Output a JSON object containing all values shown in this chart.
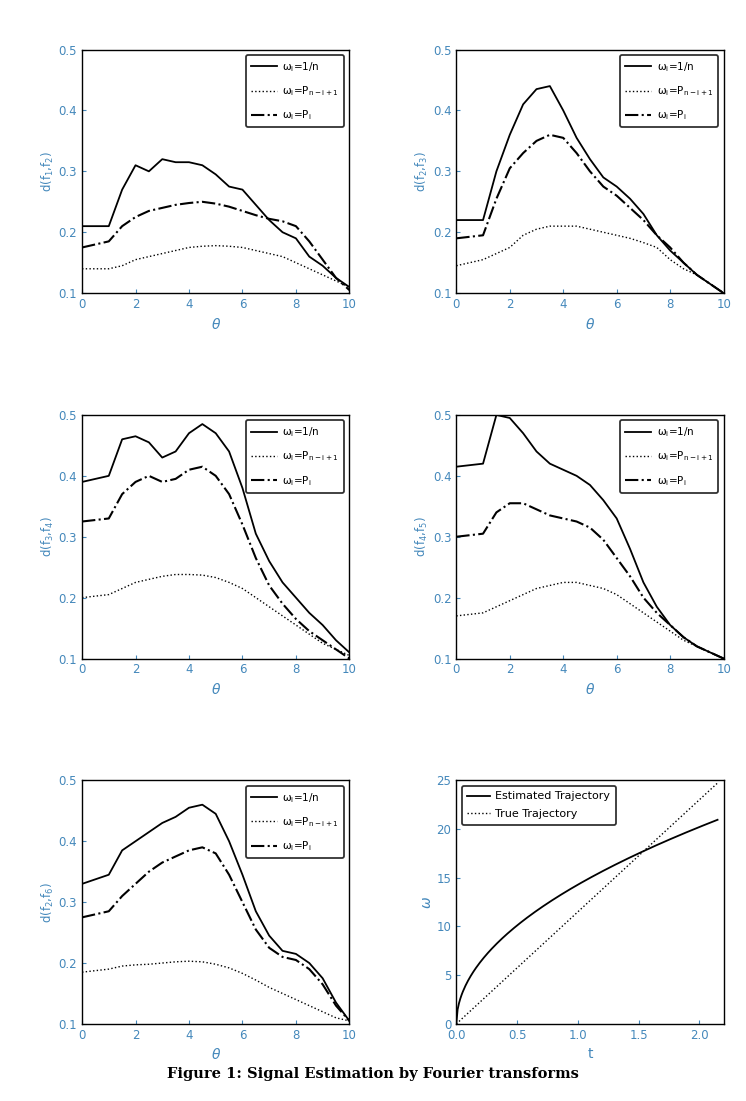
{
  "title": "Figure 1: Signal Estimation by Fourier transforms",
  "ylim": [
    0.1,
    0.5
  ],
  "xlim": [
    0,
    10
  ],
  "tick_color": "#4488bb",
  "plots": [
    {
      "solid": [
        0,
        0.21,
        1,
        0.21,
        1.5,
        0.27,
        2,
        0.31,
        2.5,
        0.3,
        3,
        0.32,
        3.5,
        0.315,
        4,
        0.315,
        4.5,
        0.31,
        5,
        0.295,
        5.5,
        0.275,
        6,
        0.27,
        6.5,
        0.245,
        7,
        0.22,
        7.5,
        0.2,
        8,
        0.19,
        8.5,
        0.16,
        9,
        0.145,
        9.5,
        0.125,
        10,
        0.11
      ],
      "dotted": [
        0,
        0.14,
        1,
        0.14,
        1.5,
        0.145,
        2,
        0.155,
        2.5,
        0.16,
        3,
        0.165,
        3.5,
        0.17,
        4,
        0.175,
        4.5,
        0.177,
        5,
        0.178,
        5.5,
        0.177,
        6,
        0.175,
        6.5,
        0.17,
        7,
        0.165,
        7.5,
        0.16,
        8,
        0.15,
        8.5,
        0.14,
        9,
        0.13,
        9.5,
        0.12,
        10,
        0.11
      ],
      "dashdot": [
        0,
        0.175,
        1,
        0.185,
        1.5,
        0.21,
        2,
        0.225,
        2.5,
        0.235,
        3,
        0.24,
        3.5,
        0.245,
        4,
        0.248,
        4.5,
        0.25,
        5,
        0.247,
        5.5,
        0.242,
        6,
        0.235,
        6.5,
        0.228,
        7,
        0.222,
        7.5,
        0.218,
        8,
        0.21,
        8.5,
        0.185,
        9,
        0.155,
        9.5,
        0.125,
        10,
        0.105
      ],
      "ylabel": "d(f$_1$,f$_2$)"
    },
    {
      "solid": [
        0,
        0.22,
        1,
        0.22,
        1.5,
        0.3,
        2,
        0.36,
        2.5,
        0.41,
        3,
        0.435,
        3.5,
        0.44,
        4,
        0.4,
        4.5,
        0.355,
        5,
        0.32,
        5.5,
        0.29,
        6,
        0.275,
        6.5,
        0.255,
        7,
        0.23,
        7.5,
        0.195,
        8,
        0.17,
        8.5,
        0.15,
        9,
        0.13,
        9.5,
        0.115,
        10,
        0.1
      ],
      "dotted": [
        0,
        0.145,
        1,
        0.155,
        1.5,
        0.165,
        2,
        0.175,
        2.5,
        0.195,
        3,
        0.205,
        3.5,
        0.21,
        4,
        0.21,
        4.5,
        0.21,
        5,
        0.205,
        5.5,
        0.2,
        6,
        0.195,
        6.5,
        0.19,
        7,
        0.183,
        7.5,
        0.175,
        8,
        0.155,
        8.5,
        0.14,
        9,
        0.13,
        9.5,
        0.115,
        10,
        0.1
      ],
      "dashdot": [
        0,
        0.19,
        1,
        0.195,
        1.5,
        0.255,
        2,
        0.305,
        2.5,
        0.33,
        3,
        0.35,
        3.5,
        0.36,
        4,
        0.355,
        4.5,
        0.33,
        5,
        0.3,
        5.5,
        0.275,
        6,
        0.26,
        6.5,
        0.24,
        7,
        0.22,
        7.5,
        0.195,
        8,
        0.175,
        8.5,
        0.15,
        9,
        0.13,
        9.5,
        0.115,
        10,
        0.1
      ],
      "ylabel": "d(f$_2$,f$_3$)"
    },
    {
      "solid": [
        0,
        0.39,
        1,
        0.4,
        1.5,
        0.46,
        2,
        0.465,
        2.5,
        0.455,
        3,
        0.43,
        3.5,
        0.44,
        4,
        0.47,
        4.5,
        0.485,
        5,
        0.47,
        5.5,
        0.44,
        6,
        0.38,
        6.5,
        0.305,
        7,
        0.26,
        7.5,
        0.225,
        8,
        0.2,
        8.5,
        0.175,
        9,
        0.155,
        9.5,
        0.13,
        10,
        0.11
      ],
      "dotted": [
        0,
        0.2,
        1,
        0.205,
        1.5,
        0.215,
        2,
        0.225,
        2.5,
        0.23,
        3,
        0.235,
        3.5,
        0.238,
        4,
        0.238,
        4.5,
        0.237,
        5,
        0.233,
        5.5,
        0.225,
        6,
        0.215,
        6.5,
        0.2,
        7,
        0.185,
        7.5,
        0.17,
        8,
        0.155,
        8.5,
        0.14,
        9,
        0.125,
        9.5,
        0.115,
        10,
        0.105
      ],
      "dashdot": [
        0,
        0.325,
        1,
        0.33,
        1.5,
        0.37,
        2,
        0.39,
        2.5,
        0.4,
        3,
        0.39,
        3.5,
        0.395,
        4,
        0.41,
        4.5,
        0.415,
        5,
        0.4,
        5.5,
        0.37,
        6,
        0.32,
        6.5,
        0.265,
        7,
        0.22,
        7.5,
        0.19,
        8,
        0.165,
        8.5,
        0.145,
        9,
        0.13,
        9.5,
        0.115,
        10,
        0.1
      ],
      "ylabel": "d(f$_3$,f$_4$)"
    },
    {
      "solid": [
        0,
        0.415,
        1,
        0.42,
        1.5,
        0.5,
        2,
        0.495,
        2.5,
        0.47,
        3,
        0.44,
        3.5,
        0.42,
        4,
        0.41,
        4.5,
        0.4,
        5,
        0.385,
        5.5,
        0.36,
        6,
        0.33,
        6.5,
        0.28,
        7,
        0.225,
        7.5,
        0.185,
        8,
        0.155,
        8.5,
        0.135,
        9,
        0.12,
        9.5,
        0.11,
        10,
        0.1
      ],
      "dotted": [
        0,
        0.17,
        1,
        0.175,
        1.5,
        0.185,
        2,
        0.195,
        2.5,
        0.205,
        3,
        0.215,
        3.5,
        0.22,
        4,
        0.225,
        4.5,
        0.225,
        5,
        0.22,
        5.5,
        0.215,
        6,
        0.205,
        6.5,
        0.19,
        7,
        0.175,
        7.5,
        0.16,
        8,
        0.145,
        8.5,
        0.13,
        9,
        0.12,
        9.5,
        0.11,
        10,
        0.1
      ],
      "dashdot": [
        0,
        0.3,
        1,
        0.305,
        1.5,
        0.34,
        2,
        0.355,
        2.5,
        0.355,
        3,
        0.345,
        3.5,
        0.335,
        4,
        0.33,
        4.5,
        0.325,
        5,
        0.315,
        5.5,
        0.295,
        6,
        0.265,
        6.5,
        0.235,
        7,
        0.2,
        7.5,
        0.175,
        8,
        0.155,
        8.5,
        0.135,
        9,
        0.12,
        9.5,
        0.11,
        10,
        0.1
      ],
      "ylabel": "d(f$_4$,f$_5$)"
    },
    {
      "solid": [
        0,
        0.33,
        1,
        0.345,
        1.5,
        0.385,
        2,
        0.4,
        2.5,
        0.415,
        3,
        0.43,
        3.5,
        0.44,
        4,
        0.455,
        4.5,
        0.46,
        5,
        0.445,
        5.5,
        0.4,
        6,
        0.345,
        6.5,
        0.285,
        7,
        0.245,
        7.5,
        0.22,
        8,
        0.215,
        8.5,
        0.2,
        9,
        0.175,
        9.5,
        0.135,
        10,
        0.105
      ],
      "dotted": [
        0,
        0.185,
        1,
        0.19,
        1.5,
        0.195,
        2,
        0.197,
        2.5,
        0.198,
        3,
        0.2,
        3.5,
        0.202,
        4,
        0.203,
        4.5,
        0.202,
        5,
        0.198,
        5.5,
        0.192,
        6,
        0.183,
        6.5,
        0.172,
        7,
        0.16,
        7.5,
        0.15,
        8,
        0.14,
        8.5,
        0.13,
        9,
        0.12,
        9.5,
        0.11,
        10,
        0.105
      ],
      "dashdot": [
        0,
        0.275,
        1,
        0.285,
        1.5,
        0.31,
        2,
        0.33,
        2.5,
        0.35,
        3,
        0.365,
        3.5,
        0.375,
        4,
        0.385,
        4.5,
        0.39,
        5,
        0.38,
        5.5,
        0.345,
        6,
        0.3,
        6.5,
        0.255,
        7,
        0.225,
        7.5,
        0.21,
        8,
        0.205,
        8.5,
        0.19,
        9,
        0.165,
        9.5,
        0.13,
        10,
        0.105
      ],
      "ylabel": "d(f$_2$,f$_6$)"
    }
  ],
  "traj_xlim": [
    0,
    2.2
  ],
  "traj_ylim": [
    0,
    25
  ],
  "traj_yticks": [
    0,
    5,
    10,
    15,
    20,
    25
  ],
  "traj_xticks": [
    0,
    0.5,
    1.0,
    1.5,
    2.0
  ]
}
